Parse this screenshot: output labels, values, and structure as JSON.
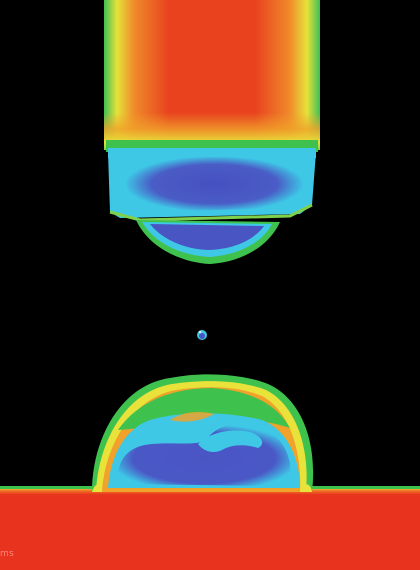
{
  "image": {
    "subject": "thermal-image-nozzle-droplet-substrate",
    "palette": {
      "background": "#000000",
      "hot": "#e8341f",
      "warm": "#f0a22a",
      "mid": "#e9e23a",
      "green": "#3fc24d",
      "cyan": "#3ec8e6",
      "cold": "#4a55c4"
    }
  },
  "corner_label": "ms"
}
